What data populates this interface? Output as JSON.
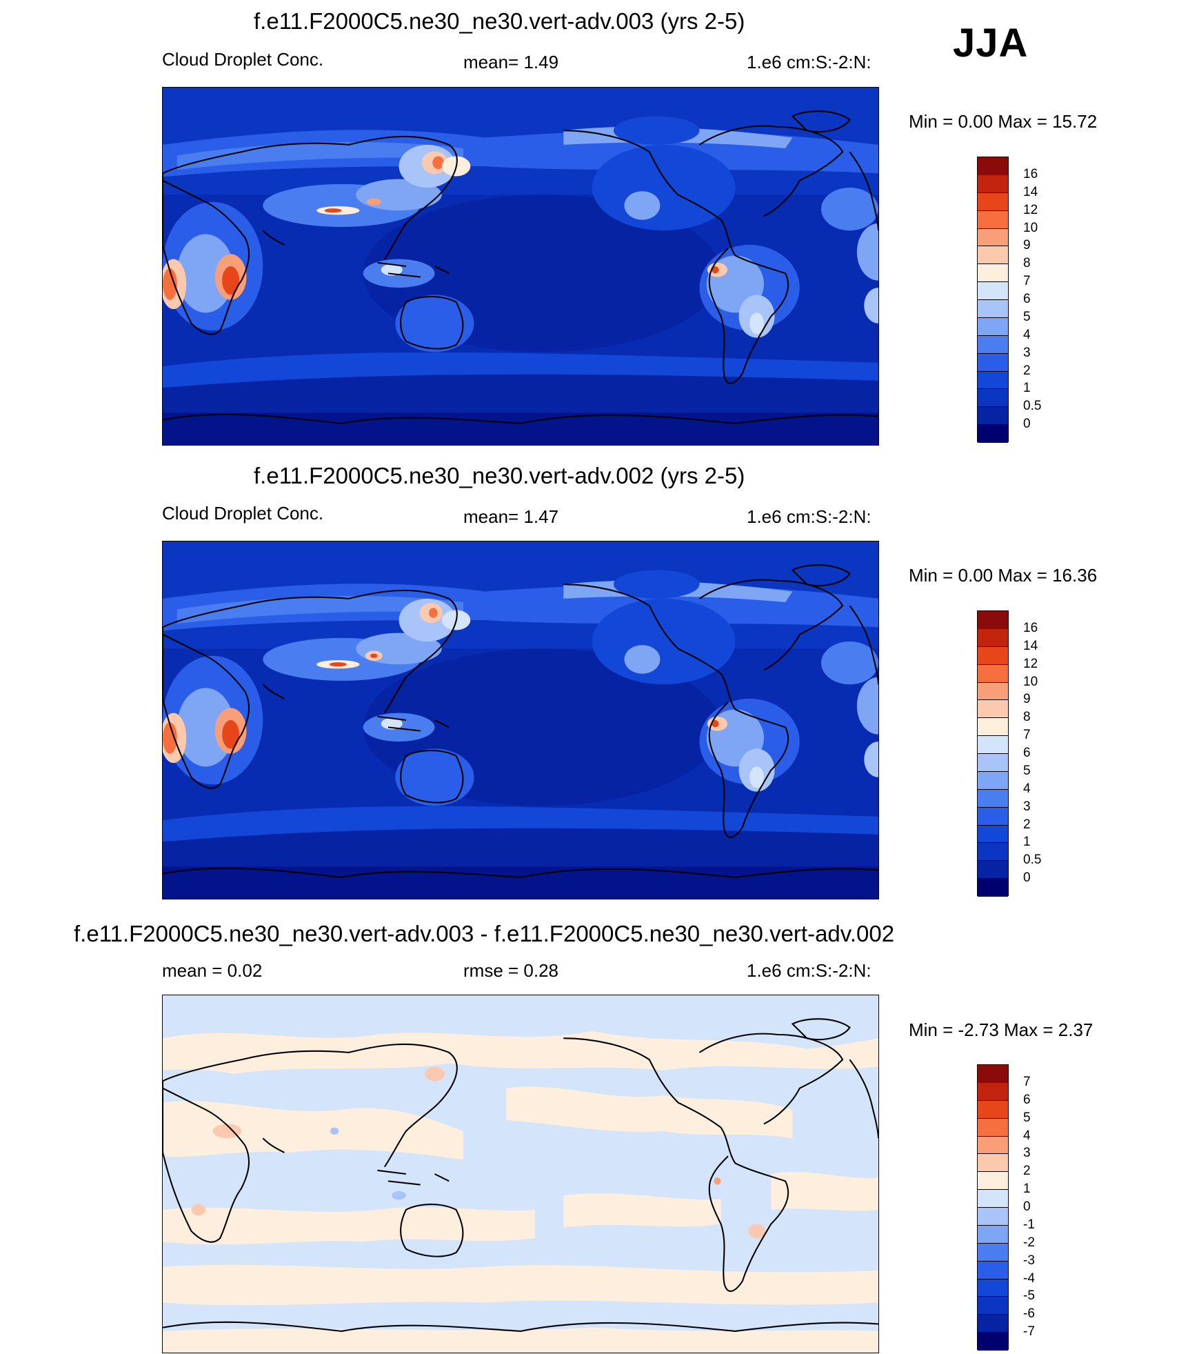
{
  "season": "JJA",
  "panels": [
    {
      "id": "p1",
      "title": "f.e11.F2000C5.ne30_ne30.vert-adv.003 (yrs 2-5)",
      "left_label": "Cloud Droplet Conc.",
      "center_label": "mean=   1.49",
      "right_label": "1.e6 cm:S:-2:N:",
      "minmax": "Min =    0.00 Max =  15.72",
      "colorbar": {
        "colors": [
          "#00006e",
          "#0623a4",
          "#0a36c2",
          "#1347d8",
          "#2a5ee8",
          "#4a7ef0",
          "#7fa6f5",
          "#a9c4f8",
          "#d4e5fb",
          "#fdeede",
          "#fbcaae",
          "#f89e78",
          "#f5703e",
          "#e7461a",
          "#c2230c",
          "#8b0a0a"
        ],
        "labels": [
          "0",
          "0.5",
          "1",
          "2",
          "3",
          "4",
          "5",
          "6",
          "7",
          "8",
          "9",
          "10",
          "12",
          "14",
          "16"
        ]
      }
    },
    {
      "id": "p2",
      "title": "f.e11.F2000C5.ne30_ne30.vert-adv.002 (yrs 2-5)",
      "left_label": "Cloud Droplet Conc.",
      "center_label": "mean=   1.47",
      "right_label": "1.e6 cm:S:-2:N:",
      "minmax": "Min =    0.00 Max =  16.36",
      "colorbar": {
        "colors": [
          "#00006e",
          "#0623a4",
          "#0a36c2",
          "#1347d8",
          "#2a5ee8",
          "#4a7ef0",
          "#7fa6f5",
          "#a9c4f8",
          "#d4e5fb",
          "#fdeede",
          "#fbcaae",
          "#f89e78",
          "#f5703e",
          "#e7461a",
          "#c2230c",
          "#8b0a0a"
        ],
        "labels": [
          "0",
          "0.5",
          "1",
          "2",
          "3",
          "4",
          "5",
          "6",
          "7",
          "8",
          "9",
          "10",
          "12",
          "14",
          "16"
        ]
      }
    },
    {
      "id": "p3",
      "title": "f.e11.F2000C5.ne30_ne30.vert-adv.003 - f.e11.F2000C5.ne30_ne30.vert-adv.002",
      "left_label": "mean =    0.02",
      "center_label": "rmse =    0.28",
      "right_label": "1.e6 cm:S:-2:N:",
      "minmax": "Min =  -2.73 Max =    2.37",
      "colorbar": {
        "colors": [
          "#00006e",
          "#0623a4",
          "#0a36c2",
          "#1347d8",
          "#2a5ee8",
          "#4a7ef0",
          "#7fa6f5",
          "#a9c4f8",
          "#d4e5fb",
          "#fdeede",
          "#fbcaae",
          "#f89e78",
          "#f5703e",
          "#e7461a",
          "#c2230c",
          "#8b0a0a"
        ],
        "labels": [
          "-7",
          "-6",
          "-5",
          "-4",
          "-3",
          "-2",
          "-1",
          "0",
          "1",
          "2",
          "3",
          "4",
          "5",
          "6",
          "7"
        ]
      }
    }
  ]
}
